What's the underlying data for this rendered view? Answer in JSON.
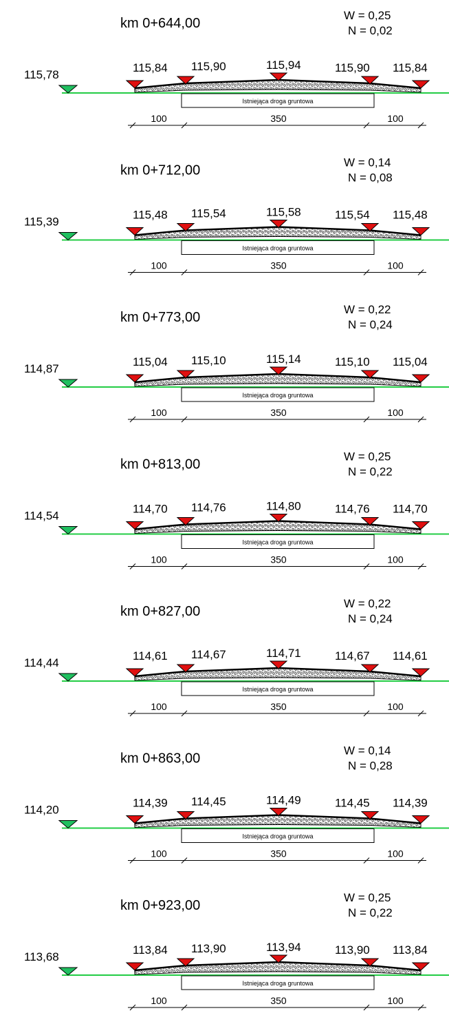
{
  "sections": [
    {
      "km": "km 0+644,00",
      "w": "W = 0,25",
      "n": "N = 0,02",
      "ground": "115,78",
      "e1": "115,84",
      "e2": "115,90",
      "e3": "115,94",
      "e4": "115,90",
      "e5": "115,84",
      "road_label": "Istniejąca droga gruntowa",
      "d1": "100",
      "d2": "350",
      "d3": "100"
    },
    {
      "km": "km 0+712,00",
      "w": "W = 0,14",
      "n": "N = 0,08",
      "ground": "115,39",
      "e1": "115,48",
      "e2": "115,54",
      "e3": "115,58",
      "e4": "115,54",
      "e5": "115,48",
      "road_label": "Istniejąca droga gruntowa",
      "d1": "100",
      "d2": "350",
      "d3": "100"
    },
    {
      "km": "km 0+773,00",
      "w": "W = 0,22",
      "n": "N = 0,24",
      "ground": "114,87",
      "e1": "115,04",
      "e2": "115,10",
      "e3": "115,14",
      "e4": "115,10",
      "e5": "115,04",
      "road_label": "Istniejąca droga gruntowa",
      "d1": "100",
      "d2": "350",
      "d3": "100"
    },
    {
      "km": "km 0+813,00",
      "w": "W = 0,25",
      "n": "N = 0,22",
      "ground": "114,54",
      "e1": "114,70",
      "e2": "114,76",
      "e3": "114,80",
      "e4": "114,76",
      "e5": "114,70",
      "road_label": "Istniejąca droga gruntowa",
      "d1": "100",
      "d2": "350",
      "d3": "100"
    },
    {
      "km": "km 0+827,00",
      "w": "W = 0,22",
      "n": "N = 0,24",
      "ground": "114,44",
      "e1": "114,61",
      "e2": "114,67",
      "e3": "114,71",
      "e4": "114,67",
      "e5": "114,61",
      "road_label": "Istniejąca droga gruntowa",
      "d1": "100",
      "d2": "350",
      "d3": "100"
    },
    {
      "km": "km 0+863,00",
      "w": "W = 0,14",
      "n": "N = 0,28",
      "ground": "114,20",
      "e1": "114,39",
      "e2": "114,45",
      "e3": "114,49",
      "e4": "114,45",
      "e5": "114,39",
      "road_label": "Istniejąca droga gruntowa",
      "d1": "100",
      "d2": "350",
      "d3": "100"
    },
    {
      "km": "km 0+923,00",
      "w": "W = 0,25",
      "n": "N = 0,22",
      "ground": "113,68",
      "e1": "113,84",
      "e2": "113,90",
      "e3": "113,94",
      "e4": "113,90",
      "e5": "113,84",
      "road_label": "Istniejąca droga gruntowa",
      "d1": "100",
      "d2": "350",
      "d3": "100"
    }
  ],
  "colors": {
    "ground_line": "#22cc44",
    "ground_marker": "#20c060",
    "design_marker": "#e01010",
    "outline": "#000000"
  },
  "icons": {
    "ground_marker": "green-triangle-icon",
    "design_marker": "red-triangle-icon"
  }
}
